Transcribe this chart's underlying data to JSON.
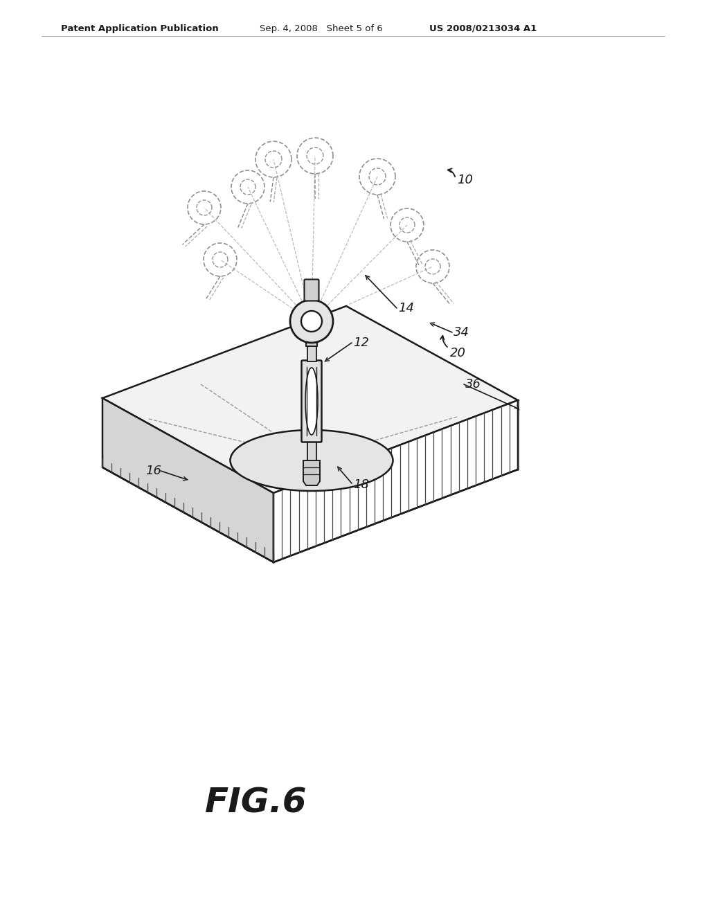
{
  "bg_color": "#ffffff",
  "line_color": "#1a1a1a",
  "dashed_color": "#555555",
  "header_left": "Patent Application Publication",
  "header_mid": "Sep. 4, 2008   Sheet 5 of 6",
  "header_right": "US 2008/0213034 A1",
  "fig_label": "FIG.6",
  "title_fontsize": 13,
  "fig_label_fontsize": 36
}
